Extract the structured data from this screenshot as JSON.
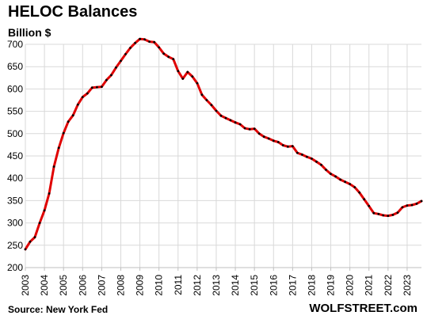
{
  "chart_data": {
    "type": "line",
    "title": "HELOC Balances",
    "unit_label": "Billion $",
    "source": "Source: New York Fed",
    "brand": "WOLFSTREET.com",
    "ylim": [
      200,
      700
    ],
    "yticks": [
      200,
      250,
      300,
      350,
      400,
      450,
      500,
      550,
      600,
      650,
      700
    ],
    "xlim": [
      2003,
      2023.75
    ],
    "xticks": [
      2003,
      2004,
      2005,
      2006,
      2007,
      2008,
      2009,
      2010,
      2011,
      2012,
      2013,
      2014,
      2015,
      2016,
      2017,
      2018,
      2019,
      2020,
      2021,
      2022,
      2023
    ],
    "grid": true,
    "colors": {
      "line": "#e00000",
      "marker": "#000000",
      "grid": "#d9d9d9",
      "axis": "#bfbfbf"
    },
    "series": [
      {
        "x": [
          2003,
          2003.25,
          2003.5,
          2003.75,
          2004,
          2004.25,
          2004.5,
          2004.75,
          2005,
          2005.25,
          2005.5,
          2005.75,
          2006,
          2006.25,
          2006.5,
          2006.75,
          2007,
          2007.25,
          2007.5,
          2007.75,
          2008,
          2008.25,
          2008.5,
          2008.75,
          2009,
          2009.25,
          2009.5,
          2009.75,
          2010,
          2010.25,
          2010.5,
          2010.75,
          2011,
          2011.25,
          2011.5,
          2011.75,
          2012,
          2012.25,
          2012.5,
          2012.75,
          2013,
          2013.25,
          2013.5,
          2013.75,
          2014,
          2014.25,
          2014.5,
          2014.75,
          2015,
          2015.25,
          2015.5,
          2015.75,
          2016,
          2016.25,
          2016.5,
          2016.75,
          2017,
          2017.25,
          2017.5,
          2017.75,
          2018,
          2018.25,
          2018.5,
          2018.75,
          2019,
          2019.25,
          2019.5,
          2019.75,
          2020,
          2020.25,
          2020.5,
          2020.75,
          2021,
          2021.25,
          2021.5,
          2021.75,
          2022,
          2022.25,
          2022.5,
          2022.75,
          2023,
          2023.25,
          2023.5,
          2023.75
        ],
        "values": [
          241,
          258,
          268,
          300,
          328,
          366,
          426,
          468,
          501,
          527,
          541,
          565,
          582,
          590,
          603,
          604,
          605,
          620,
          631,
          648,
          663,
          678,
          692,
          703,
          712,
          711,
          706,
          705,
          693,
          679,
          672,
          667,
          640,
          623,
          638,
          628,
          613,
          587,
          575,
          564,
          551,
          540,
          535,
          530,
          525,
          521,
          512,
          510,
          511,
          500,
          493,
          489,
          484,
          481,
          474,
          471,
          472,
          457,
          453,
          448,
          444,
          437,
          430,
          419,
          410,
          404,
          397,
          392,
          387,
          380,
          368,
          353,
          338,
          322,
          320,
          317,
          316,
          318,
          323,
          335,
          339,
          340,
          343,
          349
        ]
      }
    ]
  }
}
